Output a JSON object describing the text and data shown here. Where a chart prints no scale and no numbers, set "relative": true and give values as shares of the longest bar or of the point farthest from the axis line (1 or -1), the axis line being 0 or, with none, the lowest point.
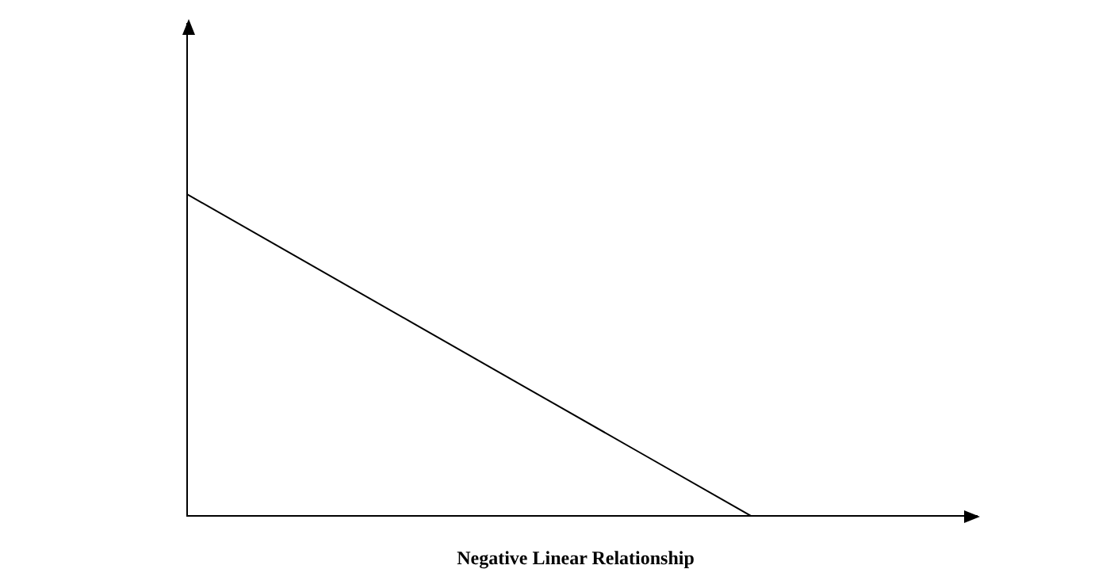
{
  "chart_data": {
    "type": "line",
    "title": "Negative Linear Relationship",
    "relative": true,
    "categories": [
      null,
      null,
      null,
      null,
      null,
      null,
      null,
      null
    ],
    "series": [
      {
        "color": "#000000",
        "values": [
          1,
          0.8,
          0.6,
          0.4,
          0.2,
          0,
          null,
          null
        ]
      }
    ],
    "grid": false,
    "legend": false,
    "marker": "none",
    "line_style": "solid"
  }
}
